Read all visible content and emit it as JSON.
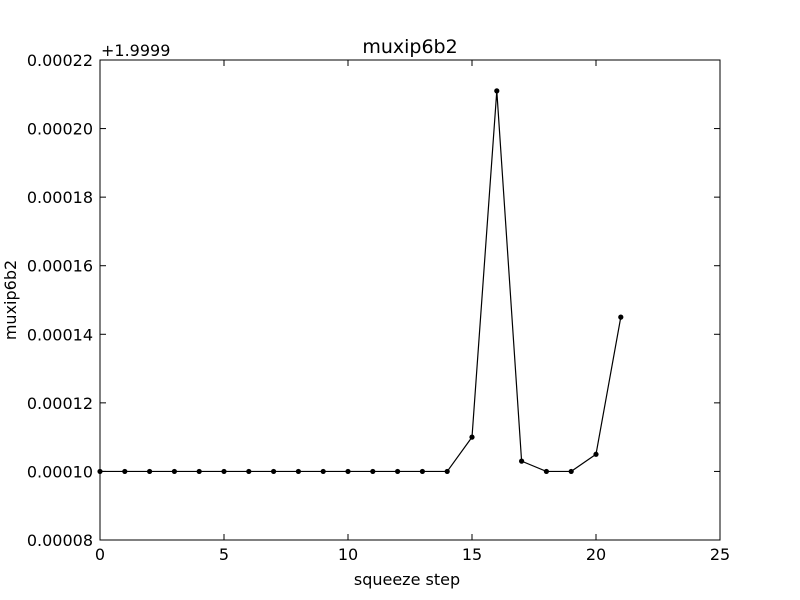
{
  "chart_data": {
    "type": "line",
    "title": "muxip6b2",
    "xlabel": "squeeze step",
    "ylabel": "muxip6b2",
    "y_offset_label": "+1.9999",
    "xlim": [
      0,
      25
    ],
    "ylim": [
      8e-05,
      0.00022
    ],
    "x_ticks": [
      0,
      5,
      10,
      15,
      20,
      25
    ],
    "x_tick_labels": [
      "0",
      "5",
      "10",
      "15",
      "20",
      "25"
    ],
    "y_ticks": [
      8e-05,
      0.0001,
      0.00012,
      0.00014,
      0.00016,
      0.00018,
      0.0002,
      0.00022
    ],
    "y_tick_labels": [
      "0.00008",
      "0.00010",
      "0.00012",
      "0.00014",
      "0.00016",
      "0.00018",
      "0.00020",
      "0.00022"
    ],
    "grid": false,
    "line_color": "#000000",
    "series": [
      {
        "x": [
          0,
          1,
          2,
          3,
          4,
          5,
          6,
          7,
          8,
          9,
          10,
          11,
          12,
          13,
          14,
          15,
          16,
          17,
          18,
          19,
          20,
          21
        ],
        "y": [
          0.0001,
          0.0001,
          0.0001,
          0.0001,
          0.0001,
          0.0001,
          0.0001,
          0.0001,
          0.0001,
          0.0001,
          0.0001,
          0.0001,
          0.0001,
          0.0001,
          0.0001,
          0.00011,
          0.000211,
          0.000103,
          0.0001,
          0.0001,
          0.000105,
          0.000145
        ]
      }
    ]
  }
}
